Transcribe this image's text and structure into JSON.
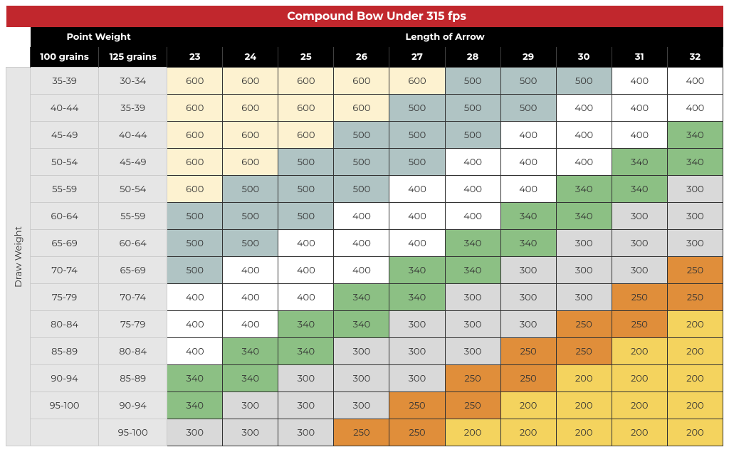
{
  "title": "Compound Bow Under 315 fps",
  "headers": {
    "point_weight": "Point Weight",
    "length_of_arrow": "Length of Arrow",
    "draw_weight": "Draw Weight",
    "pw_cols": [
      "100 grains",
      "125 grains"
    ],
    "arrow_cols": [
      "23",
      "24",
      "25",
      "26",
      "27",
      "28",
      "29",
      "30",
      "31",
      "32"
    ]
  },
  "colors": {
    "c600": "#fdf2d0",
    "c500": "#b0c4c4",
    "c400": "#ffffff",
    "c340": "#8cc084",
    "c300": "#d9d9d9",
    "c250": "#e08e3a",
    "c200": "#f4d35e"
  },
  "rows": [
    {
      "pw": [
        "35-39",
        "30-34"
      ],
      "d": [
        600,
        600,
        600,
        600,
        600,
        500,
        500,
        500,
        400,
        400
      ]
    },
    {
      "pw": [
        "40-44",
        "35-39"
      ],
      "d": [
        600,
        600,
        600,
        600,
        500,
        500,
        500,
        400,
        400,
        400
      ]
    },
    {
      "pw": [
        "45-49",
        "40-44"
      ],
      "d": [
        600,
        600,
        600,
        500,
        500,
        500,
        400,
        400,
        400,
        340
      ]
    },
    {
      "pw": [
        "50-54",
        "45-49"
      ],
      "d": [
        600,
        600,
        500,
        500,
        500,
        400,
        400,
        400,
        340,
        340
      ]
    },
    {
      "pw": [
        "55-59",
        "50-54"
      ],
      "d": [
        600,
        500,
        500,
        500,
        400,
        400,
        400,
        340,
        340,
        300
      ]
    },
    {
      "pw": [
        "60-64",
        "55-59"
      ],
      "d": [
        500,
        500,
        500,
        400,
        400,
        400,
        340,
        340,
        300,
        300
      ]
    },
    {
      "pw": [
        "65-69",
        "60-64"
      ],
      "d": [
        500,
        500,
        400,
        400,
        400,
        340,
        340,
        300,
        300,
        300
      ]
    },
    {
      "pw": [
        "70-74",
        "65-69"
      ],
      "d": [
        500,
        400,
        400,
        400,
        340,
        340,
        300,
        300,
        300,
        250
      ]
    },
    {
      "pw": [
        "75-79",
        "70-74"
      ],
      "d": [
        400,
        400,
        400,
        340,
        340,
        300,
        300,
        300,
        250,
        250
      ]
    },
    {
      "pw": [
        "80-84",
        "75-79"
      ],
      "d": [
        400,
        400,
        340,
        340,
        300,
        300,
        300,
        250,
        250,
        200
      ]
    },
    {
      "pw": [
        "85-89",
        "80-84"
      ],
      "d": [
        400,
        340,
        340,
        300,
        300,
        300,
        250,
        250,
        200,
        200
      ]
    },
    {
      "pw": [
        "90-94",
        "85-89"
      ],
      "d": [
        340,
        340,
        300,
        300,
        300,
        250,
        250,
        200,
        200,
        200
      ]
    },
    {
      "pw": [
        "95-100",
        "90-94"
      ],
      "d": [
        340,
        300,
        300,
        300,
        250,
        250,
        200,
        200,
        200,
        200
      ]
    },
    {
      "pw": [
        "",
        "95-100"
      ],
      "d": [
        300,
        300,
        300,
        250,
        250,
        200,
        200,
        200,
        200,
        200
      ]
    }
  ]
}
